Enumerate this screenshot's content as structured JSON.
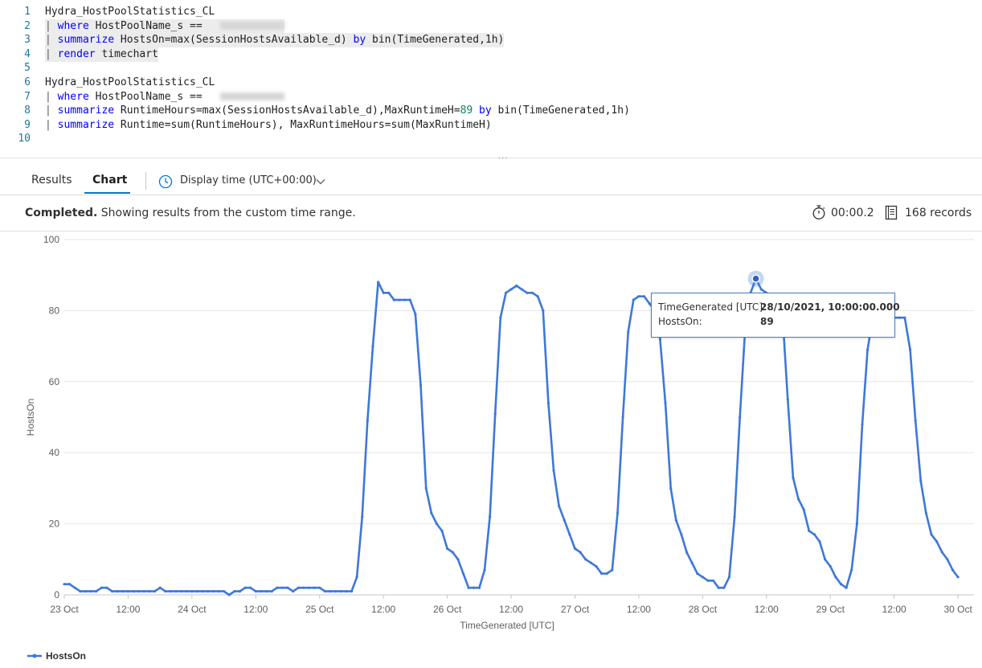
{
  "query": {
    "lines": [
      {
        "num": "1",
        "text": "Hydra_HostPoolStatistics_CL"
      },
      {
        "num": "2",
        "pipe": "| ",
        "kw": "where",
        "text": " HostPoolName_s == "
      },
      {
        "num": "3",
        "pipe": "| ",
        "kw": "summarize",
        "text": " HostsOn=max(SessionHostsAvailable_d) ",
        "kw2": "by",
        "text2": " bin(TimeGenerated,1h)"
      },
      {
        "num": "4",
        "pipe": "| ",
        "kw": "render",
        "text": " timechart"
      },
      {
        "num": "5",
        "text": ""
      },
      {
        "num": "6",
        "text": "Hydra_HostPoolStatistics_CL"
      },
      {
        "num": "7",
        "pipe": "| ",
        "kw": "where",
        "text": " HostPoolName_s == "
      },
      {
        "num": "8",
        "pipe": "| ",
        "kw": "summarize",
        "text": " RuntimeHours=max(SessionHostsAvailable_d),MaxRuntimeH=",
        "num_lit": "89",
        "kw2": " by",
        "text2": " bin(TimeGenerated,1h)"
      },
      {
        "num": "9",
        "pipe": "| ",
        "kw": "summarize",
        "text": " Runtime=sum(RuntimeHours), MaxRuntimeHours=sum(MaxRuntimeH)"
      },
      {
        "num": "10",
        "text": ""
      }
    ]
  },
  "splitter_grip": "...",
  "tabs": [
    {
      "label": "Results",
      "active": false
    },
    {
      "label": "Chart",
      "active": true
    }
  ],
  "display_time": {
    "label": "Display time (UTC+00:00)",
    "icon": "clock-icon",
    "chevron": "chevron-down-icon"
  },
  "status": {
    "state": "Completed.",
    "message": " Showing results from the custom time range.",
    "duration": "00:00.2",
    "records": "168 records",
    "duration_icon": "stopwatch-icon",
    "records_icon": "document-icon"
  },
  "colors": {
    "series": "#3d78d8",
    "accent": "#0078d4",
    "grid": "#e6e6e6"
  },
  "chart_data": {
    "type": "line",
    "xlabel": "TimeGenerated [UTC]",
    "ylabel": "HostsOn",
    "ylim": [
      0,
      100
    ],
    "yticks": [
      0,
      20,
      40,
      60,
      80,
      100
    ],
    "xlim": [
      "2021-10-23T00:00",
      "2021-10-30T03:00"
    ],
    "xticks": [
      {
        "t": "2021-10-23T00:00",
        "label": "23 Oct"
      },
      {
        "t": "2021-10-23T12:00",
        "label": "12:00"
      },
      {
        "t": "2021-10-24T00:00",
        "label": "24 Oct"
      },
      {
        "t": "2021-10-24T12:00",
        "label": "12:00"
      },
      {
        "t": "2021-10-25T00:00",
        "label": "25 Oct"
      },
      {
        "t": "2021-10-25T12:00",
        "label": "12:00"
      },
      {
        "t": "2021-10-26T00:00",
        "label": "26 Oct"
      },
      {
        "t": "2021-10-26T12:00",
        "label": "12:00"
      },
      {
        "t": "2021-10-27T00:00",
        "label": "27 Oct"
      },
      {
        "t": "2021-10-27T12:00",
        "label": "12:00"
      },
      {
        "t": "2021-10-28T00:00",
        "label": "28 Oct"
      },
      {
        "t": "2021-10-28T12:00",
        "label": "12:00"
      },
      {
        "t": "2021-10-29T00:00",
        "label": "29 Oct"
      },
      {
        "t": "2021-10-29T12:00",
        "label": "12:00"
      },
      {
        "t": "2021-10-30T00:00",
        "label": "30 Oct"
      }
    ],
    "grid": true,
    "legend_position": "bottom-left",
    "series": [
      {
        "name": "HostsOn",
        "start": "2021-10-23T00:00",
        "interval": "1h",
        "values": [
          3,
          3,
          2,
          1,
          1,
          1,
          1,
          2,
          2,
          1,
          1,
          1,
          1,
          1,
          1,
          1,
          1,
          1,
          2,
          1,
          1,
          1,
          1,
          1,
          1,
          1,
          1,
          1,
          1,
          1,
          1,
          0,
          1,
          1,
          2,
          2,
          1,
          1,
          1,
          1,
          2,
          2,
          2,
          1,
          2,
          2,
          2,
          2,
          2,
          1,
          1,
          1,
          1,
          1,
          1,
          5,
          22,
          49,
          70,
          88,
          85,
          85,
          83,
          83,
          83,
          83,
          79,
          59,
          30,
          23,
          20,
          18,
          13,
          12,
          10,
          6,
          2,
          2,
          2,
          7,
          22,
          51,
          78,
          85,
          86,
          87,
          86,
          85,
          85,
          84,
          80,
          54,
          35,
          25,
          21,
          17,
          13,
          12,
          10,
          9,
          8,
          6,
          6,
          7,
          23,
          50,
          74,
          83,
          84,
          84,
          82,
          80,
          72,
          54,
          30,
          21,
          17,
          12,
          9,
          6,
          5,
          4,
          4,
          2,
          2,
          5,
          22,
          50,
          75,
          85,
          89,
          86,
          85,
          84,
          84,
          79,
          55,
          33,
          27,
          24,
          18,
          17,
          15,
          10,
          8,
          5,
          3,
          2,
          7,
          20,
          48,
          69,
          78,
          80,
          80,
          80,
          78,
          78,
          78,
          69,
          49,
          32,
          23,
          17,
          15,
          12,
          10,
          7,
          5
        ]
      }
    ],
    "tooltip": {
      "field1_label": "TimeGenerated [UTC]:",
      "field1_value": "28/10/2021, 10:00:00.000",
      "field2_label": "HostsOn:",
      "field2_value": "89",
      "point_index": 130
    }
  }
}
